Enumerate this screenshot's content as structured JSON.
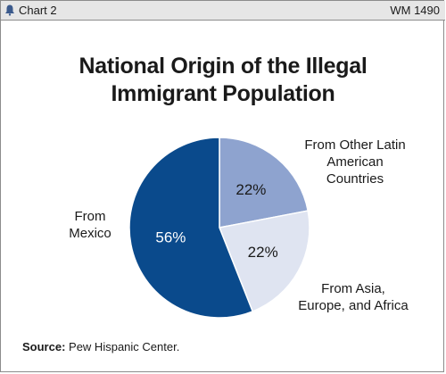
{
  "header": {
    "chart_label": "Chart 2",
    "chart_id": "WM 1490",
    "logo_icon": "bell-logo-icon"
  },
  "source": {
    "prefix": "Source:",
    "text": "Pew Hispanic Center."
  },
  "colors": {
    "mexico": "#0a4a8c",
    "latin_america": "#8ea3cf",
    "asia_europe_africa": "#dfe4f1",
    "header_bg": "#e6e6e6",
    "border": "#8c8c8c"
  },
  "chart_data": {
    "type": "pie",
    "title": "National Origin of the Illegal Immigrant Population",
    "title_lines": [
      "National Origin of the Illegal",
      "Immigrant Population"
    ],
    "slices": [
      {
        "name": "From Other Latin American Countries",
        "label_lines": [
          "From Other Latin",
          "American",
          "Countries"
        ],
        "value": 22,
        "value_label": "22%"
      },
      {
        "name": "From Asia, Europe, and Africa",
        "label_lines": [
          "From Asia,",
          "Europe, and Africa"
        ],
        "value": 22,
        "value_label": "22%"
      },
      {
        "name": "From Mexico",
        "label_lines": [
          "From",
          "Mexico"
        ],
        "value": 56,
        "value_label": "56%"
      }
    ]
  }
}
